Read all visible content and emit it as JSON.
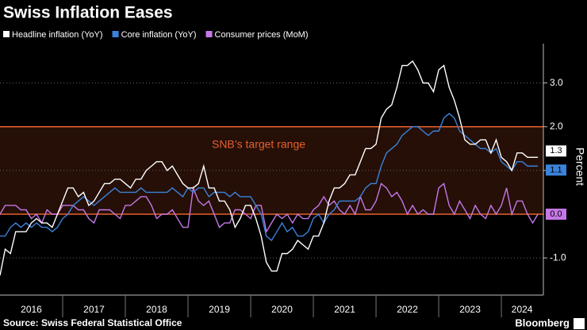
{
  "chart_data": {
    "type": "line",
    "title": "Swiss Inflation Eases",
    "y_label": "Percent",
    "source": "Source: Swiss Federal Statistical Office",
    "brand": "Bloomberg",
    "target_range": {
      "label": "SNB’s target range",
      "values": [
        0,
        2
      ],
      "color": "#e8602c"
    },
    "xlim": [
      2016.0,
      2024.67
    ],
    "xticks": [
      {
        "value": 2016.5,
        "label": "2016"
      },
      {
        "value": 2017.5,
        "label": "2017"
      },
      {
        "value": 2018.5,
        "label": "2018"
      },
      {
        "value": 2019.5,
        "label": "2019"
      },
      {
        "value": 2020.5,
        "label": "2020"
      },
      {
        "value": 2021.5,
        "label": "2021"
      },
      {
        "value": 2022.5,
        "label": "2022"
      },
      {
        "value": 2023.5,
        "label": "2023"
      },
      {
        "value": 2024.33,
        "label": "2024"
      }
    ],
    "ylim": [
      -1.85,
      3.9
    ],
    "yticks": [
      {
        "value": -1,
        "label": "-1.0"
      },
      {
        "value": 1,
        "label": "1.0"
      },
      {
        "value": 2,
        "label": "2.0"
      },
      {
        "value": 3,
        "label": "3.0"
      }
    ],
    "grid": true,
    "x": [
      2016.0,
      2016.083,
      2016.167,
      2016.25,
      2016.333,
      2016.417,
      2016.5,
      2016.583,
      2016.667,
      2016.75,
      2016.833,
      2016.917,
      2017.0,
      2017.083,
      2017.167,
      2017.25,
      2017.333,
      2017.417,
      2017.5,
      2017.583,
      2017.667,
      2017.75,
      2017.833,
      2017.917,
      2018.0,
      2018.083,
      2018.167,
      2018.25,
      2018.333,
      2018.417,
      2018.5,
      2018.583,
      2018.667,
      2018.75,
      2018.833,
      2018.917,
      2019.0,
      2019.083,
      2019.167,
      2019.25,
      2019.333,
      2019.417,
      2019.5,
      2019.583,
      2019.667,
      2019.75,
      2019.833,
      2019.917,
      2020.0,
      2020.083,
      2020.167,
      2020.25,
      2020.333,
      2020.417,
      2020.5,
      2020.583,
      2020.667,
      2020.75,
      2020.833,
      2020.917,
      2021.0,
      2021.083,
      2021.167,
      2021.25,
      2021.333,
      2021.417,
      2021.5,
      2021.583,
      2021.667,
      2021.75,
      2021.833,
      2021.917,
      2022.0,
      2022.083,
      2022.167,
      2022.25,
      2022.333,
      2022.417,
      2022.5,
      2022.583,
      2022.667,
      2022.75,
      2022.833,
      2022.917,
      2023.0,
      2023.083,
      2023.167,
      2023.25,
      2023.333,
      2023.417,
      2023.5,
      2023.583,
      2023.667,
      2023.75,
      2023.833,
      2023.917,
      2024.0,
      2024.083,
      2024.167,
      2024.25,
      2024.333,
      2024.417,
      2024.5,
      2024.583
    ],
    "series": [
      {
        "name": "Headline inflation (YoY)",
        "color": "#ffffff",
        "values": [
          -1.4,
          -0.8,
          -0.9,
          -0.4,
          -0.4,
          -0.4,
          -0.2,
          -0.1,
          -0.2,
          -0.2,
          -0.3,
          0.0,
          0.3,
          0.6,
          0.6,
          0.4,
          0.5,
          0.2,
          0.3,
          0.5,
          0.7,
          0.7,
          0.8,
          0.8,
          0.7,
          0.6,
          0.8,
          0.8,
          1.0,
          1.1,
          1.2,
          1.2,
          1.0,
          1.1,
          0.9,
          0.7,
          0.6,
          0.6,
          0.7,
          1.1,
          0.6,
          0.6,
          0.3,
          0.3,
          0.1,
          -0.3,
          -0.1,
          0.2,
          0.2,
          -0.1,
          -0.5,
          -1.1,
          -1.3,
          -1.3,
          -0.9,
          -0.9,
          -0.8,
          -0.6,
          -0.7,
          -0.8,
          -0.5,
          -0.5,
          -0.2,
          0.3,
          0.6,
          0.6,
          0.7,
          0.9,
          0.9,
          1.2,
          1.5,
          1.5,
          1.6,
          2.2,
          2.4,
          2.5,
          2.9,
          3.4,
          3.4,
          3.5,
          3.3,
          3.0,
          3.0,
          2.8,
          3.3,
          3.4,
          2.9,
          2.6,
          2.2,
          1.7,
          1.6,
          1.6,
          1.7,
          1.7,
          1.4,
          1.7,
          1.3,
          1.2,
          1.0,
          1.4,
          1.4,
          1.3,
          1.3,
          1.3
        ],
        "value_labels": [
          null,
          null,
          null,
          null,
          null,
          null,
          null,
          null,
          null,
          null,
          null,
          null,
          null,
          null,
          null,
          null,
          null,
          null,
          null,
          null,
          null,
          null,
          null,
          null,
          null,
          null,
          null,
          null,
          null,
          null,
          null,
          null,
          null,
          null,
          null,
          null,
          null,
          null,
          null,
          null,
          null,
          null,
          null,
          null,
          null,
          null,
          null,
          null,
          null,
          null,
          null,
          null,
          null,
          null,
          null,
          null,
          null,
          null,
          null,
          null,
          null,
          null,
          null,
          null,
          null,
          null,
          null,
          null,
          null,
          null,
          null,
          null,
          null,
          null,
          null,
          null,
          null,
          null,
          null,
          null,
          null,
          null,
          null,
          null,
          null,
          null,
          null,
          null,
          null,
          null,
          null,
          null,
          null,
          null,
          null,
          null,
          null,
          null,
          null,
          null,
          null,
          null,
          null,
          "1.3"
        ]
      },
      {
        "name": "Core inflation (YoY)",
        "color": "#3b82db",
        "values": [
          -0.5,
          -0.5,
          -0.3,
          -0.2,
          -0.3,
          -0.2,
          -0.3,
          -0.2,
          -0.3,
          -0.3,
          -0.4,
          -0.3,
          -0.1,
          0.0,
          0.2,
          0.3,
          0.4,
          0.3,
          0.2,
          0.3,
          0.4,
          0.5,
          0.6,
          0.5,
          0.5,
          0.5,
          0.5,
          0.6,
          0.5,
          0.5,
          0.5,
          0.5,
          0.5,
          0.6,
          0.5,
          0.4,
          0.6,
          0.5,
          0.6,
          0.6,
          0.4,
          0.5,
          0.5,
          0.5,
          0.4,
          0.5,
          0.4,
          0.4,
          0.4,
          0.2,
          0.0,
          -0.5,
          -0.6,
          -0.4,
          -0.2,
          -0.4,
          -0.3,
          -0.5,
          -0.5,
          -0.4,
          -0.1,
          0.0,
          -0.2,
          0.0,
          0.1,
          0.3,
          0.3,
          0.3,
          0.3,
          0.4,
          0.6,
          0.7,
          0.7,
          1.1,
          1.4,
          1.5,
          1.6,
          1.8,
          1.9,
          2.0,
          2.0,
          1.9,
          1.8,
          1.9,
          1.9,
          2.2,
          2.3,
          2.2,
          1.9,
          1.8,
          1.7,
          1.6,
          1.5,
          1.5,
          1.4,
          1.5,
          1.2,
          1.1,
          1.0,
          1.2,
          1.2,
          1.1,
          1.1,
          1.1
        ],
        "value_labels": [
          null,
          null,
          null,
          null,
          null,
          null,
          null,
          null,
          null,
          null,
          null,
          null,
          null,
          null,
          null,
          null,
          null,
          null,
          null,
          null,
          null,
          null,
          null,
          null,
          null,
          null,
          null,
          null,
          null,
          null,
          null,
          null,
          null,
          null,
          null,
          null,
          null,
          null,
          null,
          null,
          null,
          null,
          null,
          null,
          null,
          null,
          null,
          null,
          null,
          null,
          null,
          null,
          null,
          null,
          null,
          null,
          null,
          null,
          null,
          null,
          null,
          null,
          null,
          null,
          null,
          null,
          null,
          null,
          null,
          null,
          null,
          null,
          null,
          null,
          null,
          null,
          null,
          null,
          null,
          null,
          null,
          null,
          null,
          null,
          null,
          null,
          null,
          null,
          null,
          null,
          null,
          null,
          null,
          null,
          null,
          null,
          null,
          null,
          null,
          null,
          null,
          null,
          null,
          "1.1"
        ]
      },
      {
        "name": "Consumer prices (MoM)",
        "color": "#c577e6",
        "values": [
          0.0,
          0.2,
          0.2,
          0.2,
          0.1,
          0.1,
          -0.1,
          0.0,
          -0.2,
          0.1,
          0.0,
          0.0,
          0.2,
          0.2,
          0.2,
          0.1,
          0.1,
          -0.1,
          -0.2,
          0.1,
          0.1,
          0.1,
          0.0,
          -0.1,
          0.2,
          0.2,
          0.3,
          0.4,
          0.4,
          0.2,
          -0.1,
          0.0,
          0.0,
          0.1,
          -0.1,
          -0.3,
          -0.3,
          0.6,
          0.3,
          0.2,
          0.3,
          0.0,
          -0.3,
          -0.2,
          -0.2,
          0.1,
          0.1,
          0.0,
          -0.1,
          0.2,
          0.2,
          -0.4,
          -0.2,
          0.0,
          -0.1,
          0.0,
          -0.2,
          0.0,
          -0.1,
          -0.1,
          0.1,
          0.2,
          0.4,
          0.2,
          0.3,
          0.1,
          0.0,
          0.2,
          0.0,
          0.4,
          0.1,
          0.1,
          0.3,
          0.7,
          0.6,
          0.4,
          0.5,
          0.3,
          0.0,
          0.2,
          0.0,
          0.1,
          0.0,
          0.0,
          0.6,
          0.7,
          0.2,
          0.0,
          0.3,
          0.1,
          -0.1,
          0.2,
          0.0,
          -0.1,
          0.2,
          0.0,
          0.2,
          0.6,
          0.0,
          0.3,
          0.3,
          0.0,
          -0.2,
          0.0
        ],
        "value_labels": [
          null,
          null,
          null,
          null,
          null,
          null,
          null,
          null,
          null,
          null,
          null,
          null,
          null,
          null,
          null,
          null,
          null,
          null,
          null,
          null,
          null,
          null,
          null,
          null,
          null,
          null,
          null,
          null,
          null,
          null,
          null,
          null,
          null,
          null,
          null,
          null,
          null,
          null,
          null,
          null,
          null,
          null,
          null,
          null,
          null,
          null,
          null,
          null,
          null,
          null,
          null,
          null,
          null,
          null,
          null,
          null,
          null,
          null,
          null,
          null,
          null,
          null,
          null,
          null,
          null,
          null,
          null,
          null,
          null,
          null,
          null,
          null,
          null,
          null,
          null,
          null,
          null,
          null,
          null,
          null,
          null,
          null,
          null,
          null,
          null,
          null,
          null,
          null,
          null,
          null,
          null,
          null,
          null,
          null,
          null,
          null,
          null,
          null,
          null,
          null,
          null,
          null,
          null,
          "0.0"
        ]
      }
    ]
  }
}
